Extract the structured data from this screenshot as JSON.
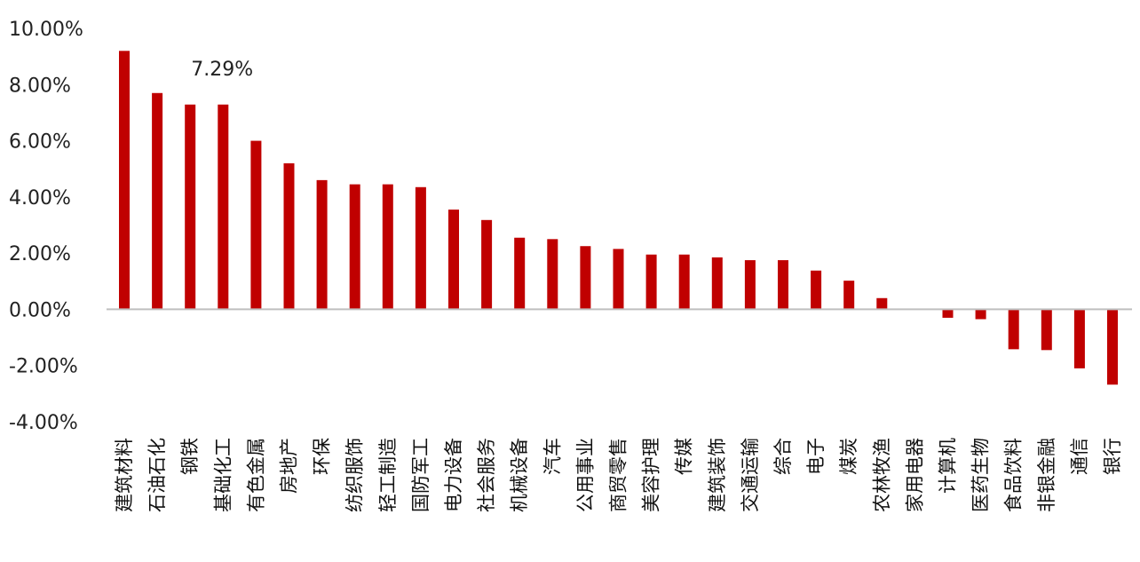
{
  "chart_data": {
    "type": "bar",
    "title": "",
    "xlabel": "",
    "ylabel": "",
    "ylim": [
      -4,
      10
    ],
    "yticks": [
      "10.00%",
      "8.00%",
      "6.00%",
      "4.00%",
      "2.00%",
      "0.00%",
      "-2.00%",
      "-4.00%"
    ],
    "ytick_values": [
      10,
      8,
      6,
      4,
      2,
      0,
      -2,
      -4
    ],
    "grid": false,
    "legend": "none",
    "bar_color": "#c00000",
    "categories": [
      "建筑材料",
      "石油石化",
      "钢铁",
      "基础化工",
      "有色金属",
      "房地产",
      "环保",
      "纺织服饰",
      "轻工制造",
      "国防军工",
      "电力设备",
      "社会服务",
      "机械设备",
      "汽车",
      "公用事业",
      "商贸零售",
      "美容护理",
      "传媒",
      "建筑装饰",
      "交通运输",
      "综合",
      "电子",
      "煤炭",
      "农林牧渔",
      "家用电器",
      "计算机",
      "医药生物",
      "食品饮料",
      "非银金融",
      "通信",
      "银行"
    ],
    "values": [
      9.2,
      7.7,
      7.29,
      7.29,
      6.0,
      5.2,
      4.6,
      4.45,
      4.45,
      4.35,
      3.55,
      3.18,
      2.55,
      2.5,
      2.25,
      2.15,
      1.95,
      1.95,
      1.85,
      1.75,
      1.75,
      1.38,
      1.02,
      0.4,
      0.0,
      -0.3,
      -0.35,
      -1.42,
      -1.45,
      -2.1,
      -2.68
    ],
    "annotations": [
      {
        "category": "钢铁",
        "text": "7.29%"
      }
    ]
  }
}
